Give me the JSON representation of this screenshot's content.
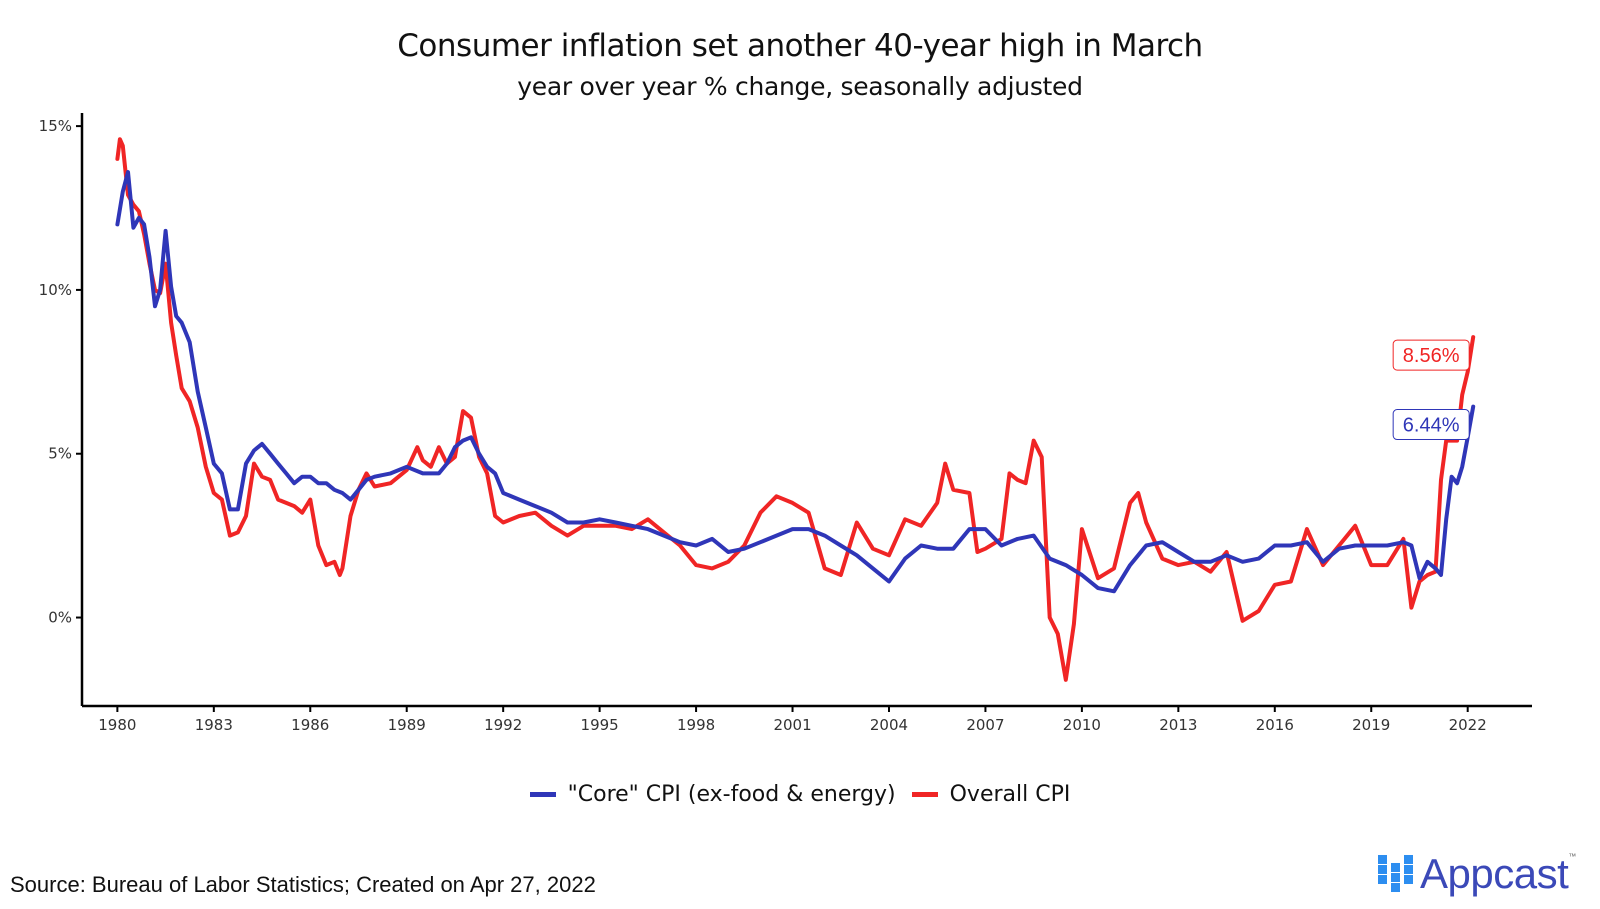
{
  "chart_data": {
    "type": "line",
    "title": "Consumer inflation set another 40-year high in March",
    "subtitle": "year over year % change, seasonally adjusted",
    "xlabel": "",
    "ylabel": "",
    "xlim": [
      1978.9,
      2024.0
    ],
    "ylim": [
      -2.7,
      15.4
    ],
    "x_ticks": [
      1980,
      1983,
      1986,
      1989,
      1992,
      1995,
      1998,
      2001,
      2004,
      2007,
      2010,
      2013,
      2016,
      2019,
      2022
    ],
    "x_tick_labels": [
      "1980",
      "1983",
      "1986",
      "1989",
      "1992",
      "1995",
      "1998",
      "2001",
      "2004",
      "2007",
      "2010",
      "2013",
      "2016",
      "2019",
      "2022"
    ],
    "y_ticks": [
      0,
      5,
      10,
      15
    ],
    "y_tick_labels": [
      "0%",
      "5%",
      "10%",
      "15%"
    ],
    "grid": false,
    "legend_position": "bottom",
    "series": [
      {
        "name": "\"Core\" CPI (ex-food & energy)",
        "color": "#2f36b8",
        "end_label": "6.44%",
        "x": [
          1980.0,
          1980.17,
          1980.33,
          1980.5,
          1980.67,
          1980.83,
          1981.0,
          1981.17,
          1981.33,
          1981.5,
          1981.67,
          1981.83,
          1982.0,
          1982.25,
          1982.5,
          1982.75,
          1983.0,
          1983.25,
          1983.5,
          1983.75,
          1984.0,
          1984.25,
          1984.5,
          1984.75,
          1985.0,
          1985.25,
          1985.5,
          1985.75,
          1986.0,
          1986.25,
          1986.5,
          1986.75,
          1987.0,
          1987.25,
          1987.5,
          1987.75,
          1988.0,
          1988.5,
          1989.0,
          1989.5,
          1990.0,
          1990.25,
          1990.5,
          1990.75,
          1991.0,
          1991.25,
          1991.5,
          1991.75,
          1992.0,
          1992.5,
          1993.0,
          1993.5,
          1994.0,
          1994.5,
          1995.0,
          1995.5,
          1996.0,
          1996.5,
          1997.0,
          1997.5,
          1998.0,
          1998.5,
          1999.0,
          1999.5,
          2000.0,
          2000.5,
          2001.0,
          2001.5,
          2002.0,
          2002.5,
          2003.0,
          2003.5,
          2004.0,
          2004.5,
          2005.0,
          2005.5,
          2006.0,
          2006.5,
          2007.0,
          2007.5,
          2008.0,
          2008.5,
          2009.0,
          2009.5,
          2010.0,
          2010.5,
          2011.0,
          2011.5,
          2012.0,
          2012.5,
          2013.0,
          2013.5,
          2014.0,
          2014.5,
          2015.0,
          2015.5,
          2016.0,
          2016.5,
          2017.0,
          2017.5,
          2018.0,
          2018.5,
          2019.0,
          2019.5,
          2020.0,
          2020.25,
          2020.5,
          2020.75,
          2021.0,
          2021.17,
          2021.33,
          2021.5,
          2021.67,
          2021.83,
          2022.0,
          2022.17
        ],
        "values": [
          12.0,
          13.0,
          13.6,
          11.9,
          12.2,
          12.0,
          11.0,
          9.5,
          10.0,
          11.8,
          10.1,
          9.2,
          9.0,
          8.4,
          6.9,
          5.8,
          4.7,
          4.4,
          3.3,
          3.3,
          4.7,
          5.1,
          5.3,
          5.0,
          4.7,
          4.4,
          4.1,
          4.3,
          4.3,
          4.1,
          4.1,
          3.9,
          3.8,
          3.6,
          3.9,
          4.2,
          4.3,
          4.4,
          4.6,
          4.4,
          4.4,
          4.7,
          5.2,
          5.4,
          5.5,
          5.0,
          4.6,
          4.4,
          3.8,
          3.6,
          3.4,
          3.2,
          2.9,
          2.9,
          3.0,
          2.9,
          2.8,
          2.7,
          2.5,
          2.3,
          2.2,
          2.4,
          2.0,
          2.1,
          2.3,
          2.5,
          2.7,
          2.7,
          2.5,
          2.2,
          1.9,
          1.5,
          1.1,
          1.8,
          2.2,
          2.1,
          2.1,
          2.7,
          2.7,
          2.2,
          2.4,
          2.5,
          1.8,
          1.6,
          1.3,
          0.9,
          0.8,
          1.6,
          2.2,
          2.3,
          2.0,
          1.7,
          1.7,
          1.9,
          1.7,
          1.8,
          2.2,
          2.2,
          2.3,
          1.7,
          2.1,
          2.2,
          2.2,
          2.2,
          2.3,
          2.2,
          1.2,
          1.7,
          1.5,
          1.3,
          3.0,
          4.3,
          4.1,
          4.6,
          5.5,
          6.44
        ]
      },
      {
        "name": "Overall CPI",
        "color": "#f02525",
        "end_label": "8.56%",
        "x": [
          1980.0,
          1980.08,
          1980.17,
          1980.33,
          1980.5,
          1980.67,
          1980.83,
          1981.0,
          1981.17,
          1981.33,
          1981.5,
          1981.67,
          1981.83,
          1982.0,
          1982.25,
          1982.5,
          1982.75,
          1983.0,
          1983.25,
          1983.5,
          1983.75,
          1984.0,
          1984.25,
          1984.5,
          1984.75,
          1985.0,
          1985.25,
          1985.5,
          1985.75,
          1986.0,
          1986.25,
          1986.5,
          1986.75,
          1986.92,
          1987.0,
          1987.25,
          1987.5,
          1987.75,
          1988.0,
          1988.5,
          1989.0,
          1989.33,
          1989.5,
          1989.75,
          1990.0,
          1990.25,
          1990.5,
          1990.75,
          1991.0,
          1991.25,
          1991.5,
          1991.75,
          1992.0,
          1992.5,
          1993.0,
          1993.5,
          1994.0,
          1994.5,
          1995.0,
          1995.5,
          1996.0,
          1996.5,
          1997.0,
          1997.5,
          1998.0,
          1998.5,
          1999.0,
          1999.5,
          2000.0,
          2000.5,
          2001.0,
          2001.5,
          2002.0,
          2002.5,
          2003.0,
          2003.5,
          2004.0,
          2004.5,
          2005.0,
          2005.5,
          2005.75,
          2006.0,
          2006.5,
          2006.75,
          2007.0,
          2007.5,
          2007.75,
          2008.0,
          2008.25,
          2008.5,
          2008.75,
          2009.0,
          2009.25,
          2009.5,
          2009.75,
          2010.0,
          2010.5,
          2011.0,
          2011.5,
          2011.75,
          2012.0,
          2012.5,
          2013.0,
          2013.5,
          2014.0,
          2014.5,
          2015.0,
          2015.5,
          2016.0,
          2016.5,
          2017.0,
          2017.5,
          2018.0,
          2018.5,
          2019.0,
          2019.5,
          2020.0,
          2020.25,
          2020.5,
          2020.75,
          2021.0,
          2021.17,
          2021.33,
          2021.5,
          2021.67,
          2021.83,
          2022.0,
          2022.17
        ],
        "values": [
          14.0,
          14.6,
          14.4,
          12.9,
          12.6,
          12.4,
          11.7,
          10.8,
          10.0,
          9.9,
          10.8,
          9.0,
          8.0,
          7.0,
          6.6,
          5.8,
          4.6,
          3.8,
          3.6,
          2.5,
          2.6,
          3.1,
          4.7,
          4.3,
          4.2,
          3.6,
          3.5,
          3.4,
          3.2,
          3.6,
          2.2,
          1.6,
          1.7,
          1.3,
          1.5,
          3.1,
          3.9,
          4.4,
          4.0,
          4.1,
          4.5,
          5.2,
          4.8,
          4.6,
          5.2,
          4.7,
          4.9,
          6.3,
          6.1,
          4.9,
          4.4,
          3.1,
          2.9,
          3.1,
          3.2,
          2.8,
          2.5,
          2.8,
          2.8,
          2.8,
          2.7,
          3.0,
          2.6,
          2.2,
          1.6,
          1.5,
          1.7,
          2.2,
          3.2,
          3.7,
          3.5,
          3.2,
          1.5,
          1.3,
          2.9,
          2.1,
          1.9,
          3.0,
          2.8,
          3.5,
          4.7,
          3.9,
          3.8,
          2.0,
          2.1,
          2.4,
          4.4,
          4.2,
          4.1,
          5.4,
          4.9,
          0.0,
          -0.5,
          -1.9,
          -0.2,
          2.7,
          1.2,
          1.5,
          3.5,
          3.8,
          2.9,
          1.8,
          1.6,
          1.7,
          1.4,
          2.0,
          -0.1,
          0.2,
          1.0,
          1.1,
          2.7,
          1.6,
          2.2,
          2.8,
          1.6,
          1.6,
          2.4,
          0.3,
          1.1,
          1.3,
          1.4,
          4.2,
          5.4,
          5.4,
          5.4,
          6.8,
          7.5,
          8.56
        ]
      }
    ]
  },
  "footer": {
    "source": "Source: Bureau of Labor Statistics; Created on Apr 27, 2022"
  },
  "logo": {
    "text": "Appcast",
    "trademark": "™",
    "color_text": "#3b49b8",
    "color_mark": "#2d8ef0"
  }
}
